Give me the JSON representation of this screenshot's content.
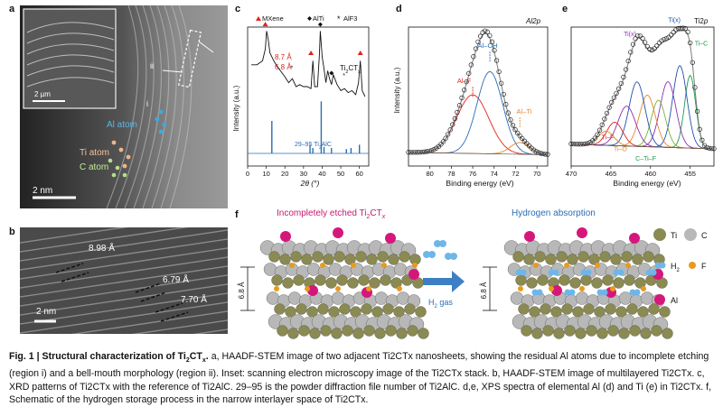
{
  "panels": {
    "a": {
      "label": "a",
      "annotations": {
        "i": "i",
        "ii": "ii",
        "al": "Al atom",
        "ti": "Ti atom",
        "c": "C atom"
      },
      "scalebar": "2 nm",
      "inset_scalebar": "2 µm"
    },
    "b": {
      "label": "b",
      "annotations": [
        "8.98 Å",
        "6.79 Å",
        "7.70 Å"
      ],
      "scalebar": "2 nm"
    },
    "c": {
      "label": "c"
    },
    "d": {
      "label": "d"
    },
    "e": {
      "label": "e"
    },
    "f": {
      "label": "f",
      "left_title_pre": "Incompletely etched Ti",
      "left_title_sub": "2",
      "left_title_mid": "CT",
      "left_title_sub2": "x",
      "right_title": "Hydrogen absorption",
      "gas_label": "H",
      "gas_sub": "2",
      "gas_suffix": " gas",
      "spacing_left": "6.8 Å",
      "spacing_right": "6.8 Å",
      "legend": {
        "ti": "Ti",
        "c": "C",
        "h2": "H",
        "h2_sub": "2",
        "f": "F",
        "al": "Al"
      },
      "colors": {
        "ti": "#8a8a52",
        "c": "#b8b8b8",
        "al": "#d5177b",
        "h2": "#6fb6e8",
        "f": "#e89a1e",
        "title_left": "#c71a6e",
        "title_right": "#2a6db3",
        "arrow": "#3d7fc4"
      }
    }
  },
  "chart_data": [
    {
      "panel": "c",
      "type": "line",
      "xlabel": "2θ (°)",
      "ylabel": "Intensity (a.u.)",
      "xlim": [
        0,
        65
      ],
      "xticks": [
        0,
        10,
        20,
        30,
        40,
        50,
        60
      ],
      "legend": [
        "MXene",
        "AlTi",
        "AlF3"
      ],
      "legend_colors": [
        "#e0241b",
        "#111111",
        "#111111"
      ],
      "annotations": [
        "8.7 Å",
        "6.8 Å"
      ],
      "series_label_top": "Ti2CTx",
      "series_label_bottom": "29–95 Ti2AlC",
      "xrd_top": {
        "x": [
          2,
          5,
          8,
          9.5,
          10.2,
          11,
          12,
          14,
          16,
          18,
          20,
          22,
          24,
          26,
          28,
          30,
          32,
          34,
          35,
          36,
          37.5,
          38.5,
          39,
          40,
          41,
          42,
          43,
          44,
          45,
          46,
          48,
          50,
          52,
          54,
          56,
          58,
          59.5,
          60.5,
          61.5,
          63
        ],
        "y": [
          0.62,
          0.62,
          0.66,
          0.78,
          0.96,
          0.88,
          0.74,
          0.66,
          0.6,
          0.55,
          0.5,
          0.44,
          0.48,
          0.4,
          0.42,
          0.4,
          0.4,
          0.38,
          0.66,
          0.4,
          0.4,
          0.72,
          0.96,
          0.7,
          0.58,
          0.44,
          0.56,
          0.48,
          0.42,
          0.52,
          0.42,
          0.36,
          0.38,
          0.34,
          0.36,
          0.32,
          0.44,
          0.66,
          0.36,
          0.3
        ]
      },
      "markers": [
        {
          "x": 9.5,
          "y": 0.99,
          "kind": "triangle"
        },
        {
          "x": 24.0,
          "y": 0.56,
          "kind": "star"
        },
        {
          "x": 34.0,
          "y": 0.7,
          "kind": "triangle"
        },
        {
          "x": 39.0,
          "y": 0.99,
          "kind": "diamond"
        },
        {
          "x": 45.0,
          "y": 0.5,
          "kind": "diamond"
        },
        {
          "x": 52.0,
          "y": 0.48,
          "kind": "star"
        },
        {
          "x": 60.5,
          "y": 0.7,
          "kind": "triangle"
        }
      ],
      "reference_sticks": {
        "x": [
          13,
          33.5,
          35,
          39.5,
          41,
          45,
          53,
          55.5,
          60
        ],
        "h": [
          0.3,
          0.08,
          0.05,
          0.48,
          0.06,
          0.05,
          0.04,
          0.05,
          0.08
        ]
      }
    },
    {
      "panel": "d",
      "type": "line",
      "title": "Al2p",
      "xlabel": "Binding energy (eV)",
      "ylabel": "Intensity (a.u.)",
      "xlim": [
        82,
        69
      ],
      "xticks": [
        80,
        78,
        76,
        74,
        72,
        70
      ],
      "components": [
        {
          "name": "Al–F",
          "color": "#e0241b",
          "center": 76.0,
          "amp": 0.5,
          "width": 1.5
        },
        {
          "name": "Al–OH",
          "color": "#2a6db3",
          "center": 74.4,
          "amp": 0.7,
          "width": 1.2
        },
        {
          "name": "Al–Ti",
          "color": "#e8862a",
          "center": 71.6,
          "amp": 0.1,
          "width": 0.9
        }
      ],
      "background": 0.05
    },
    {
      "panel": "e",
      "type": "line",
      "title": "Ti2p",
      "xlabel": "Binding energy (eV)",
      "xlim": [
        470,
        452
      ],
      "xticks": [
        470,
        465,
        460,
        455
      ],
      "peak_labels": [
        "Ti(x)",
        "Ti(x)",
        "Ti–C",
        "Ti–F",
        "Ti–O",
        "C–Ti–F"
      ],
      "components": [
        {
          "color": "#1b9a4a",
          "center": 455.0,
          "amp": 0.62,
          "width": 0.7
        },
        {
          "color": "#1f4fb5",
          "center": 456.3,
          "amp": 0.7,
          "width": 0.9
        },
        {
          "color": "#8b2fb5",
          "center": 457.8,
          "amp": 0.56,
          "width": 1.0
        },
        {
          "color": "#7ab52f",
          "center": 459.0,
          "amp": 0.4,
          "width": 0.9
        },
        {
          "color": "#e8862a",
          "center": 460.4,
          "amp": 0.44,
          "width": 1.0
        },
        {
          "color": "#1f4fb5",
          "center": 461.7,
          "amp": 0.55,
          "width": 1.0
        },
        {
          "color": "#8b2fb5",
          "center": 463.0,
          "amp": 0.34,
          "width": 1.1
        },
        {
          "color": "#e0241b",
          "center": 464.5,
          "amp": 0.2,
          "width": 1.0
        },
        {
          "color": "#e8862a",
          "center": 465.6,
          "amp": 0.12,
          "width": 1.0
        }
      ],
      "background": 0.1
    }
  ],
  "caption": {
    "fig": "Fig. 1 | ",
    "title_pre": "Structural characterization of Ti",
    "title_sub": "2",
    "title_mid": "CT",
    "title_sub2": "x",
    "title_end": ".",
    "body": "a, HAADF-STEM image of two adjacent Ti2CTx nanosheets, showing the residual Al atoms due to incomplete etching (region i) and a bell-mouth morphology (region ii). Inset: scanning electron microscopy image of the Ti2CTx stack. b, HAADF-STEM image of multilayered Ti2CTx. c, XRD patterns of Ti2CTx with the reference of Ti2AlC. 29–95 is the powder diffraction file number of Ti2AlC. d,e, XPS spectra of elemental Al (d) and Ti (e) in Ti2CTx. f, Schematic of the hydrogen storage process in the narrow interlayer space of Ti2CTx."
  }
}
